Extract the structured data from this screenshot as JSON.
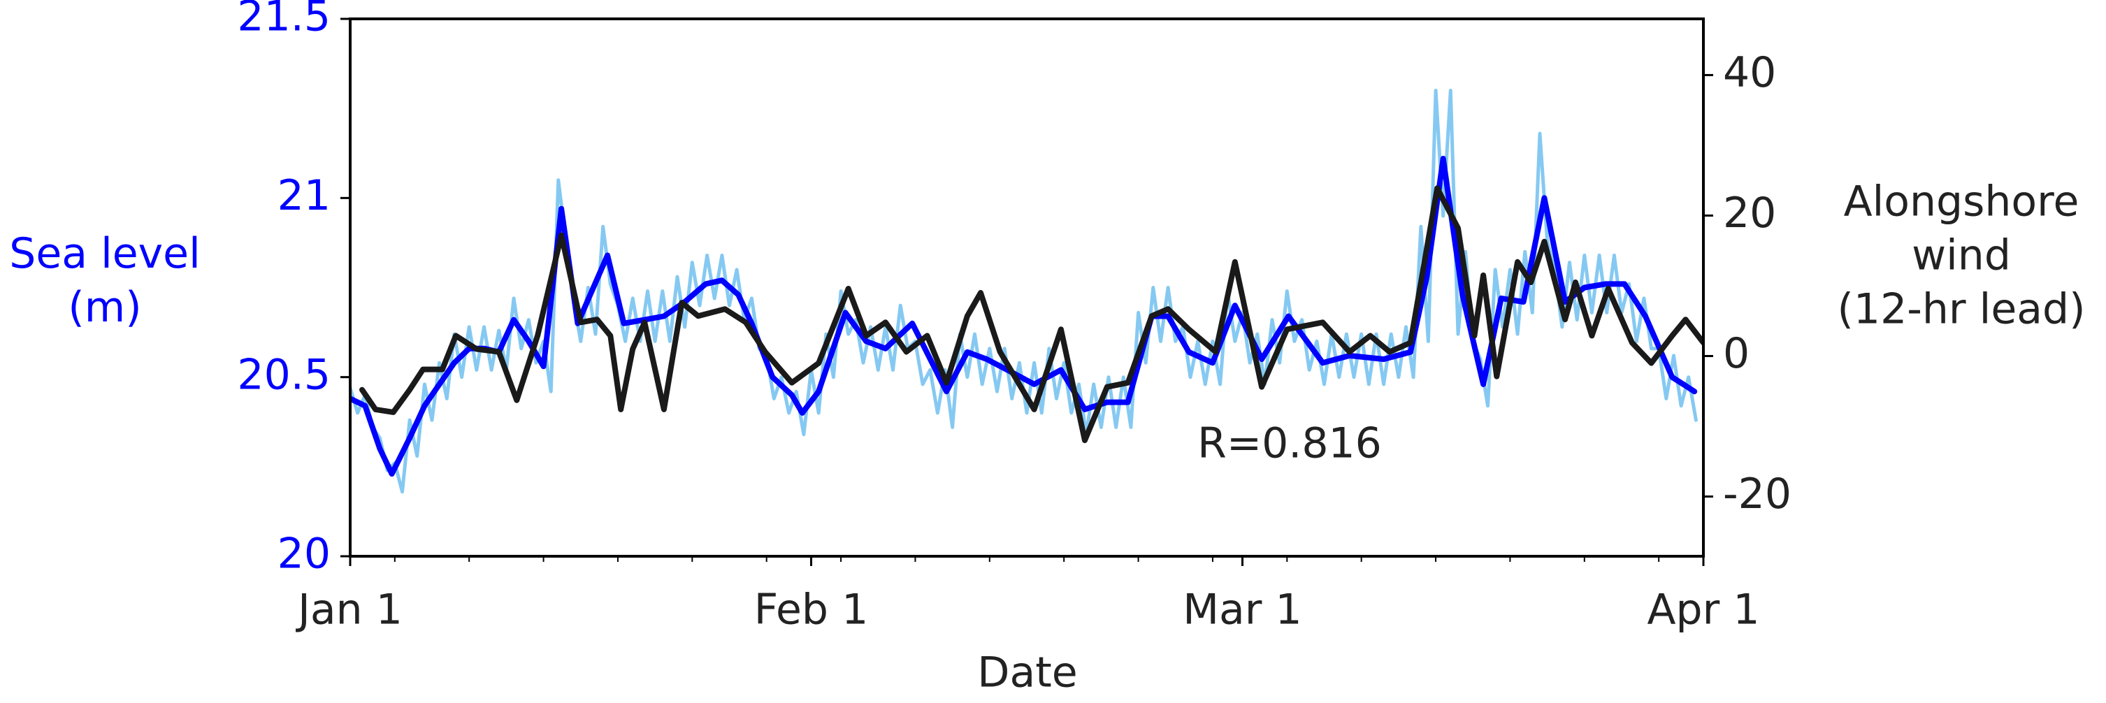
{
  "chart_data": {
    "type": "line",
    "xlabel": "Date",
    "ylabel": [
      "Sea level",
      "(m)"
    ],
    "y2label": [
      "Alongshore",
      "wind",
      "(12-hr lead)"
    ],
    "annotation": "R=0.816",
    "xlim": [
      0,
      91
    ],
    "xticks": [
      {
        "value": 0,
        "label": "Jan 1"
      },
      {
        "value": 31,
        "label": "Feb 1"
      },
      {
        "value": 60,
        "label": "Mar 1"
      },
      {
        "value": 91,
        "label": "Apr 1"
      }
    ],
    "xminorticks": [
      3,
      8,
      13,
      18,
      23,
      28,
      33,
      38,
      43,
      48,
      53,
      58,
      63,
      68,
      73,
      78,
      83,
      88
    ],
    "ylim": [
      20,
      21.5
    ],
    "yticks": [
      20,
      20.5,
      21,
      21.5
    ],
    "ycolor": "#0000ff",
    "y2lim": [
      -28.5,
      48
    ],
    "y2ticks": [
      -20,
      0,
      20,
      40
    ],
    "y2color": "#222222",
    "series": [
      {
        "color": "#85c9f2",
        "width": 5,
        "x": [
          0,
          0.5,
          1,
          1.5,
          2,
          2.5,
          3,
          3.5,
          4,
          4.5,
          5,
          5.5,
          6,
          6.5,
          7,
          7.5,
          8,
          8.5,
          9,
          9.5,
          10,
          10.5,
          11,
          11.5,
          12,
          12.5,
          13,
          13.5,
          14,
          14.5,
          15,
          15.5,
          16,
          16.5,
          17,
          17.5,
          18,
          18.5,
          19,
          19.5,
          20,
          20.5,
          21,
          21.5,
          22,
          22.5,
          23,
          23.5,
          24,
          24.5,
          25,
          25.5,
          26,
          26.5,
          27,
          27.5,
          28,
          28.5,
          29,
          29.5,
          30,
          30.5,
          31,
          31.5,
          32,
          32.5,
          33,
          33.5,
          34,
          34.5,
          35,
          35.5,
          36,
          36.5,
          37,
          37.5,
          38,
          38.5,
          39,
          39.5,
          40,
          40.5,
          41,
          41.5,
          42,
          42.5,
          43,
          43.5,
          44,
          44.5,
          45,
          45.5,
          46,
          46.5,
          47,
          47.5,
          48,
          48.5,
          49,
          49.5,
          50,
          50.5,
          51,
          51.5,
          52,
          52.5,
          53,
          53.5,
          54,
          54.5,
          55,
          55.5,
          56,
          56.5,
          57,
          57.5,
          58,
          58.5,
          59,
          59.5,
          60,
          60.5,
          61,
          61.5,
          62,
          62.5,
          63,
          63.5,
          64,
          64.5,
          65,
          65.5,
          66,
          66.5,
          67,
          67.5,
          68,
          68.5,
          69,
          69.5,
          70,
          70.5,
          71,
          71.5,
          72,
          72.5,
          73,
          73.5,
          74,
          74.5,
          75,
          75.5,
          76,
          76.5,
          77,
          77.5,
          78,
          78.5,
          79,
          79.5,
          80,
          80.5,
          81,
          81.5,
          82,
          82.5,
          83,
          83.5,
          84,
          84.5,
          85,
          85.5,
          86,
          86.5,
          87,
          87.5,
          88,
          88.5,
          89,
          89.5,
          90,
          90.5
        ],
        "values": [
          20.47,
          20.4,
          20.45,
          20.36,
          20.33,
          20.24,
          20.26,
          20.18,
          20.38,
          20.28,
          20.48,
          20.38,
          20.54,
          20.44,
          20.62,
          20.5,
          20.64,
          20.52,
          20.64,
          20.52,
          20.63,
          20.52,
          20.72,
          20.58,
          20.66,
          20.54,
          20.6,
          20.46,
          21.05,
          20.88,
          20.72,
          20.6,
          20.75,
          20.62,
          20.92,
          20.76,
          20.7,
          20.6,
          20.72,
          20.6,
          20.74,
          20.6,
          20.74,
          20.6,
          20.78,
          20.64,
          20.82,
          20.7,
          20.84,
          20.72,
          20.84,
          20.7,
          20.8,
          20.66,
          20.72,
          20.58,
          20.56,
          20.44,
          20.5,
          20.4,
          20.46,
          20.34,
          20.52,
          20.4,
          20.62,
          20.5,
          20.74,
          20.62,
          20.66,
          20.54,
          20.64,
          20.52,
          20.64,
          20.52,
          20.7,
          20.58,
          20.6,
          20.48,
          20.52,
          20.4,
          20.52,
          20.36,
          20.62,
          20.5,
          20.62,
          20.48,
          20.58,
          20.46,
          20.58,
          20.44,
          20.54,
          20.4,
          20.54,
          20.4,
          20.58,
          20.44,
          20.54,
          20.4,
          20.48,
          20.34,
          20.48,
          20.36,
          20.5,
          20.36,
          20.5,
          20.36,
          20.68,
          20.54,
          20.75,
          20.6,
          20.75,
          20.6,
          20.64,
          20.5,
          20.6,
          20.48,
          20.6,
          20.48,
          20.74,
          20.6,
          20.68,
          20.54,
          20.62,
          20.48,
          20.66,
          20.54,
          20.74,
          20.6,
          20.66,
          20.52,
          20.6,
          20.48,
          20.62,
          20.5,
          20.62,
          20.5,
          20.62,
          20.48,
          20.62,
          20.48,
          20.62,
          20.5,
          20.64,
          20.5,
          20.92,
          20.6,
          21.3,
          20.95,
          21.3,
          20.62,
          20.85,
          20.6,
          20.55,
          20.42,
          20.8,
          20.64,
          20.8,
          20.62,
          20.85,
          20.68,
          21.18,
          20.88,
          20.8,
          20.64,
          20.82,
          20.66,
          20.84,
          20.68,
          20.84,
          20.68,
          20.84,
          20.68,
          20.76,
          20.6,
          20.72,
          20.58,
          20.58,
          20.44,
          20.56,
          20.42,
          20.5,
          20.38
        ]
      },
      {
        "color": "#0000ff",
        "width": 8,
        "x": [
          0,
          1,
          2,
          2.8,
          4,
          5,
          6,
          7,
          8,
          9,
          10,
          11,
          12,
          13,
          14.2,
          15.3,
          17.3,
          18.4,
          19.8,
          21.1,
          22.5,
          23.9,
          25,
          26.1,
          27,
          28.4,
          29.7,
          30.4,
          31.5,
          33.3,
          34.7,
          36,
          37.8,
          40.1,
          41.5,
          42.8,
          44.2,
          46,
          47.8,
          49.4,
          50.9,
          52.3,
          53.9,
          55,
          56.4,
          58,
          59.5,
          61.3,
          63.1,
          65.4,
          67.2,
          69.5,
          71.3,
          72.4,
          73.5,
          74.8,
          76.2,
          77.4,
          78.9,
          80.3,
          81.7,
          83,
          84.4,
          85.7,
          87.1,
          88.9,
          90.4
        ],
        "values": [
          20.44,
          20.42,
          20.3,
          20.23,
          20.33,
          20.42,
          20.48,
          20.54,
          20.58,
          20.58,
          20.57,
          20.66,
          20.6,
          20.53,
          20.97,
          20.65,
          20.84,
          20.65,
          20.66,
          20.67,
          20.71,
          20.76,
          20.77,
          20.73,
          20.65,
          20.5,
          20.45,
          20.4,
          20.46,
          20.68,
          20.6,
          20.58,
          20.65,
          20.46,
          20.57,
          20.55,
          20.52,
          20.48,
          20.52,
          20.41,
          20.43,
          20.43,
          20.67,
          20.67,
          20.57,
          20.54,
          20.7,
          20.55,
          20.67,
          20.54,
          20.56,
          20.55,
          20.57,
          20.78,
          21.11,
          20.73,
          20.48,
          20.72,
          20.71,
          21.0,
          20.71,
          20.75,
          20.76,
          20.76,
          20.67,
          20.5,
          20.46
        ]
      },
      {
        "color": "#1a1a1a",
        "width": 8,
        "axis": "y2",
        "x": [
          0.8,
          1.7,
          2.9,
          4,
          4.9,
          6.2,
          7.1,
          8.5,
          10,
          11.2,
          12.6,
          14.2,
          15.5,
          16.6,
          17.5,
          18.2,
          19,
          19.8,
          21.1,
          22.3,
          23.4,
          25.2,
          26.6,
          27.9,
          29.7,
          31.5,
          33.5,
          34.7,
          36,
          37.4,
          38.8,
          40.1,
          41.5,
          42.4,
          43.7,
          46,
          47.8,
          49.4,
          50.9,
          52.3,
          53.9,
          55,
          56.4,
          58.2,
          59.5,
          61.3,
          63,
          65.4,
          67.2,
          68.6,
          69.9,
          71.3,
          73.1,
          74.5,
          75.6,
          76.2,
          77.1,
          78.5,
          79.4,
          80.3,
          81.7,
          82.4,
          83.5,
          84.6,
          86.2,
          87.5,
          88.9,
          89.8,
          91
        ],
        "values": [
          -4.8,
          -7.6,
          -8.0,
          -4.8,
          -1.9,
          -1.9,
          2.9,
          1.0,
          0.6,
          -6.3,
          2.9,
          17.2,
          4.8,
          5.2,
          2.9,
          -7.6,
          1.0,
          4.8,
          -7.6,
          7.6,
          5.7,
          6.7,
          4.8,
          0.6,
          -3.8,
          -1.0,
          9.6,
          2.9,
          4.8,
          0.6,
          2.9,
          -3.8,
          5.7,
          9.0,
          0.6,
          -7.6,
          3.8,
          -12.0,
          -4.4,
          -3.8,
          5.7,
          6.7,
          3.8,
          0.6,
          13.4,
          -4.4,
          3.8,
          4.8,
          0.6,
          2.9,
          0.6,
          1.9,
          23.9,
          18.2,
          2.9,
          11.5,
          -2.9,
          13.4,
          10.5,
          16.3,
          5.2,
          10.5,
          2.9,
          9.6,
          1.9,
          -1.0,
          2.9,
          5.2,
          1.9
        ]
      }
    ]
  }
}
